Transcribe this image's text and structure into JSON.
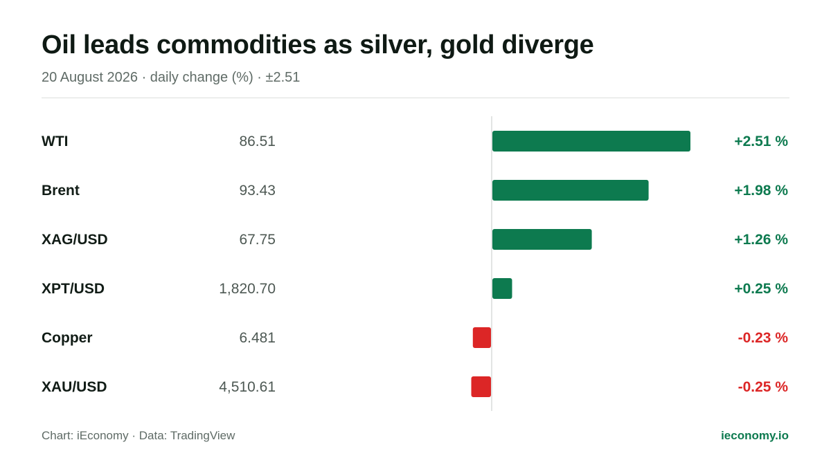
{
  "header": {
    "title": "Oil leads commodities as silver, gold diverge",
    "subtitle": "20 August 2026 · daily change (%) · ±2.51"
  },
  "footer": {
    "source": "Chart: iEconomy · Data: TradingView",
    "brand": "ieconomy.io"
  },
  "colors": {
    "positive": "#0d7a4f",
    "negative": "#dc2626",
    "axis": "#d9dcda"
  },
  "chart_data": {
    "type": "bar",
    "orientation": "horizontal",
    "scale_max": 2.51,
    "unit": "%",
    "rows": [
      {
        "name": "WTI",
        "price": "86.51",
        "change": 2.51,
        "change_label": "+2.51 %"
      },
      {
        "name": "Brent",
        "price": "93.43",
        "change": 1.98,
        "change_label": "+1.98 %"
      },
      {
        "name": "XAG/USD",
        "price": "67.75",
        "change": 1.26,
        "change_label": "+1.26 %"
      },
      {
        "name": "XPT/USD",
        "price": "1,820.70",
        "change": 0.25,
        "change_label": "+0.25 %"
      },
      {
        "name": "Copper",
        "price": "6.481",
        "change": -0.23,
        "change_label": "-0.23 %"
      },
      {
        "name": "XAU/USD",
        "price": "4,510.61",
        "change": -0.25,
        "change_label": "-0.25 %"
      }
    ]
  }
}
